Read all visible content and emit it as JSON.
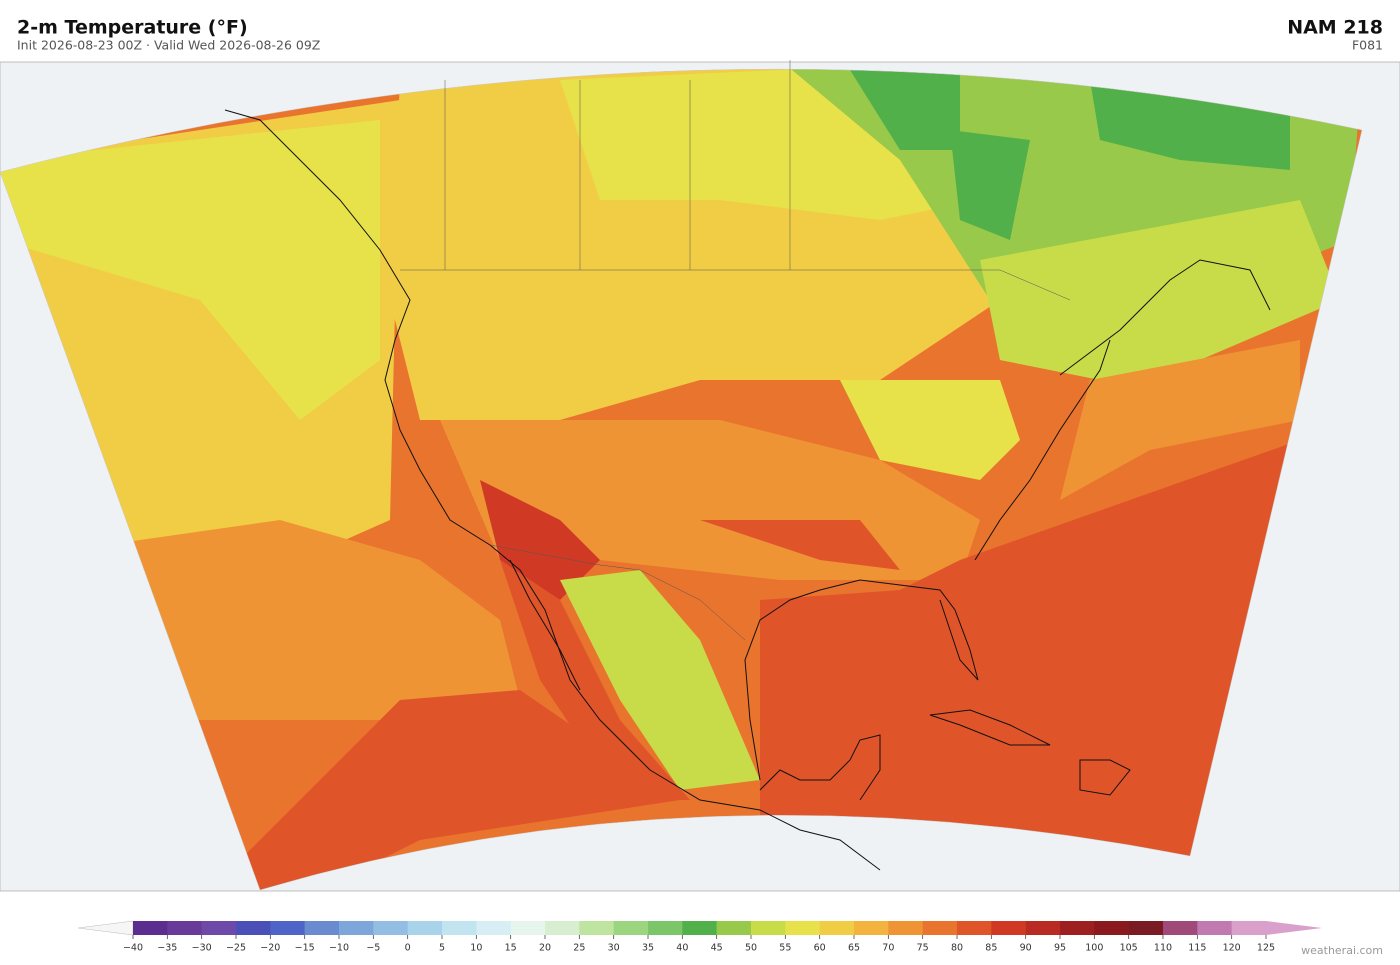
{
  "header": {
    "title": "2-m Temperature  (°F)",
    "subtitle": "Init 2026-08-23 00Z  ·  Valid Wed 2026-08-26 09Z",
    "model": "NAM  218",
    "forecast_hour": "F081"
  },
  "colorbar": {
    "ticks": [
      {
        "value": -40,
        "label": "−40"
      },
      {
        "value": -35,
        "label": "−35"
      },
      {
        "value": -30,
        "label": "−30"
      },
      {
        "value": -25,
        "label": "−25"
      },
      {
        "value": -20,
        "label": "−20"
      },
      {
        "value": -15,
        "label": "−15"
      },
      {
        "value": -10,
        "label": "−10"
      },
      {
        "value": -5,
        "label": "−5"
      },
      0,
      5,
      10,
      15,
      20,
      25,
      30,
      35,
      40,
      45,
      50,
      55,
      60,
      65,
      70,
      75,
      80,
      85,
      90,
      95,
      100,
      105,
      110,
      115,
      120,
      125
    ],
    "colors": [
      "#5b2d8e",
      "#6a3a9a",
      "#6e4aa8",
      "#4b4fb8",
      "#4f64c8",
      "#6a8bd0",
      "#7fa6db",
      "#93bde2",
      "#a9d3ea",
      "#c2e3f0",
      "#d6eef4",
      "#e6f5ee",
      "#d7efd0",
      "#bfe3a0",
      "#9bd57f",
      "#7cc66a",
      "#52b04a",
      "#98c94a",
      "#c8dc4a",
      "#e8e24a",
      "#f1cc45",
      "#f3b43f",
      "#ef9435",
      "#e9742e",
      "#e0542a",
      "#d03a25",
      "#b82a22",
      "#9e1f1f",
      "#8a1a1e",
      "#7a1a22",
      "#a04a7a",
      "#c07ab0",
      "#d9a0cc"
    ]
  },
  "credit": "weatherai.com"
}
